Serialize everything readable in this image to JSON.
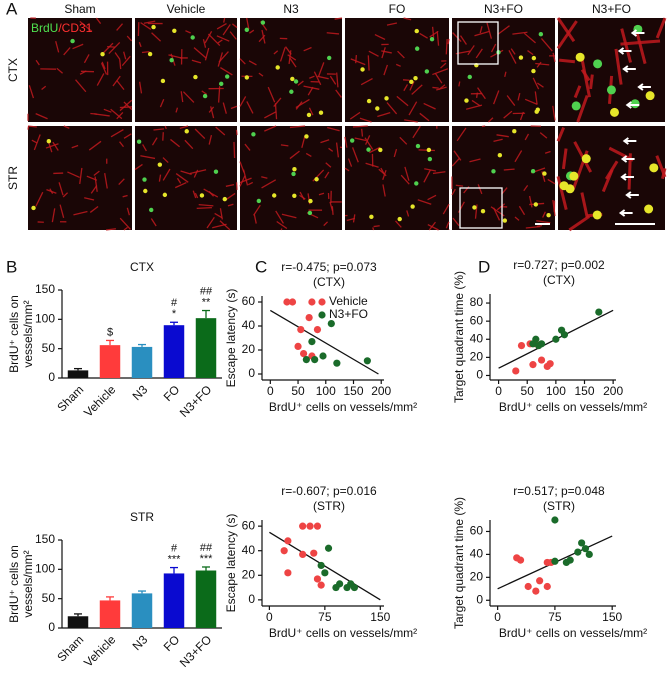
{
  "figure": {
    "panel_labels": [
      "A",
      "B",
      "C",
      "D"
    ],
    "image_columns": [
      "Sham",
      "Vehicle",
      "N3",
      "FO",
      "N3+FO",
      "N3+FO"
    ],
    "image_rows": [
      "CTX",
      "STR"
    ],
    "stain_green": "BrdU",
    "stain_red": "/CD31"
  },
  "chart_data": [
    {
      "type": "bar",
      "title": "CTX",
      "y_label": [
        "BrdU⁺ cells on",
        "vessels/mm²"
      ],
      "categories": [
        "Sham",
        "Vehicle",
        "N3",
        "FO",
        "N3+FO"
      ],
      "values": [
        13,
        56,
        53,
        90,
        102
      ],
      "errors": [
        3,
        8,
        4,
        5,
        13
      ],
      "colors": [
        "#111111",
        "#ff3b3b",
        "#2a8fc0",
        "#0a0ad0",
        "#0b6b1a"
      ],
      "annotations": [
        [],
        [
          "$"
        ],
        [],
        [
          "#",
          "*"
        ],
        [
          "##",
          "**"
        ]
      ],
      "ylim": [
        0,
        150
      ],
      "yticks": [
        0,
        50,
        100,
        150
      ]
    },
    {
      "type": "bar",
      "title": "STR",
      "y_label": [
        "BrdU⁺ cells on",
        "vessels/mm²"
      ],
      "categories": [
        "Sham",
        "Vehicle",
        "N3",
        "FO",
        "N3+FO"
      ],
      "values": [
        20,
        47,
        59,
        93,
        98
      ],
      "errors": [
        4,
        6,
        4,
        10,
        6
      ],
      "colors": [
        "#111111",
        "#ff3b3b",
        "#2a8fc0",
        "#0a0ad0",
        "#0b6b1a"
      ],
      "annotations": [
        [],
        [],
        [],
        [
          "#",
          "***"
        ],
        [
          "##",
          "***"
        ]
      ],
      "ylim": [
        0,
        150
      ],
      "yticks": [
        0,
        50,
        100,
        150
      ]
    },
    {
      "type": "scatter",
      "title": "r=-0.475; p=0.073",
      "subtitle": "(CTX)",
      "x_label": "BrdU⁺ cells on vessels/mm²",
      "y_label": "Escape latency (s)",
      "xlim": [
        -15,
        205
      ],
      "xticks": [
        0,
        50,
        100,
        150,
        200
      ],
      "ylim": [
        -5,
        65
      ],
      "yticks": [
        0,
        20,
        40,
        60
      ],
      "legend": "upper right",
      "series": [
        {
          "name": "Vehicle",
          "color": "#ee4444",
          "x": [
            30,
            40,
            75,
            70,
            55,
            85,
            50,
            60,
            75
          ],
          "y": [
            60,
            60,
            60,
            47,
            37,
            37,
            23,
            17,
            15
          ]
        },
        {
          "name": "N3+FO",
          "color": "#1a6b2a",
          "x": [
            110,
            75,
            65,
            80,
            95,
            120,
            175
          ],
          "y": [
            42,
            27,
            12,
            12,
            15,
            9,
            11
          ]
        }
      ],
      "trend": {
        "x": [
          0,
          195
        ],
        "y": [
          53,
          0
        ]
      }
    },
    {
      "type": "scatter",
      "title": "r=-0.607; p=0.016",
      "subtitle": "(STR)",
      "x_label": "BrdU⁺ cells on vessels/mm²",
      "y_label": "Escape latency (s)",
      "xlim": [
        -10,
        155
      ],
      "xticks": [
        0,
        75,
        150
      ],
      "ylim": [
        -5,
        65
      ],
      "yticks": [
        0,
        20,
        40,
        60
      ],
      "series": [
        {
          "name": "Vehicle",
          "color": "#ee4444",
          "x": [
            25,
            20,
            25,
            45,
            55,
            65,
            45,
            60,
            65,
            70
          ],
          "y": [
            48,
            40,
            22,
            60,
            60,
            60,
            37,
            38,
            17,
            12
          ]
        },
        {
          "name": "N3+FO",
          "color": "#1a6b2a",
          "x": [
            80,
            70,
            75,
            95,
            105,
            110,
            90,
            115
          ],
          "y": [
            42,
            28,
            22,
            13,
            10,
            13,
            10,
            10
          ]
        }
      ],
      "trend": {
        "x": [
          0,
          150
        ],
        "y": [
          55,
          0
        ]
      }
    },
    {
      "type": "scatter",
      "title": "r=0.727; p=0.002",
      "subtitle": "(CTX)",
      "x_label": "BrdU⁺ cells on vessels/mm²",
      "y_label": "Target quadrant time (%)",
      "xlim": [
        -15,
        205
      ],
      "xticks": [
        0,
        50,
        100,
        150,
        200
      ],
      "ylim": [
        -5,
        90
      ],
      "yticks": [
        0,
        20,
        40,
        60,
        80
      ],
      "series": [
        {
          "name": "Vehicle",
          "color": "#ee4444",
          "x": [
            30,
            40,
            55,
            60,
            75,
            85,
            90,
            65
          ],
          "y": [
            5,
            33,
            35,
            12,
            17,
            10,
            13,
            35
          ]
        },
        {
          "name": "N3+FO",
          "color": "#1a6b2a",
          "x": [
            65,
            75,
            100,
            110,
            115,
            175,
            60,
            70
          ],
          "y": [
            40,
            35,
            40,
            50,
            45,
            70,
            35,
            33
          ]
        }
      ],
      "trend": {
        "x": [
          0,
          200
        ],
        "y": [
          8,
          72
        ]
      }
    },
    {
      "type": "scatter",
      "title": "r=0.517; p=0.048",
      "subtitle": "(STR)",
      "x_label": "BrdU⁺ cells on vessels/mm²",
      "y_label": "Target quadrant time (%)",
      "xlim": [
        -10,
        155
      ],
      "xticks": [
        0,
        75,
        150
      ],
      "ylim": [
        -5,
        70
      ],
      "yticks": [
        0,
        20,
        40,
        60
      ],
      "series": [
        {
          "name": "Vehicle",
          "color": "#ee4444",
          "x": [
            25,
            30,
            40,
            50,
            55,
            65,
            70,
            65
          ],
          "y": [
            37,
            35,
            12,
            8,
            17,
            12,
            33,
            33
          ]
        },
        {
          "name": "N3+FO",
          "color": "#1a6b2a",
          "x": [
            75,
            75,
            90,
            95,
            110,
            115,
            120,
            105
          ],
          "y": [
            70,
            34,
            33,
            35,
            50,
            45,
            40,
            42
          ]
        }
      ],
      "trend": {
        "x": [
          0,
          150
        ],
        "y": [
          10,
          56
        ]
      }
    }
  ]
}
